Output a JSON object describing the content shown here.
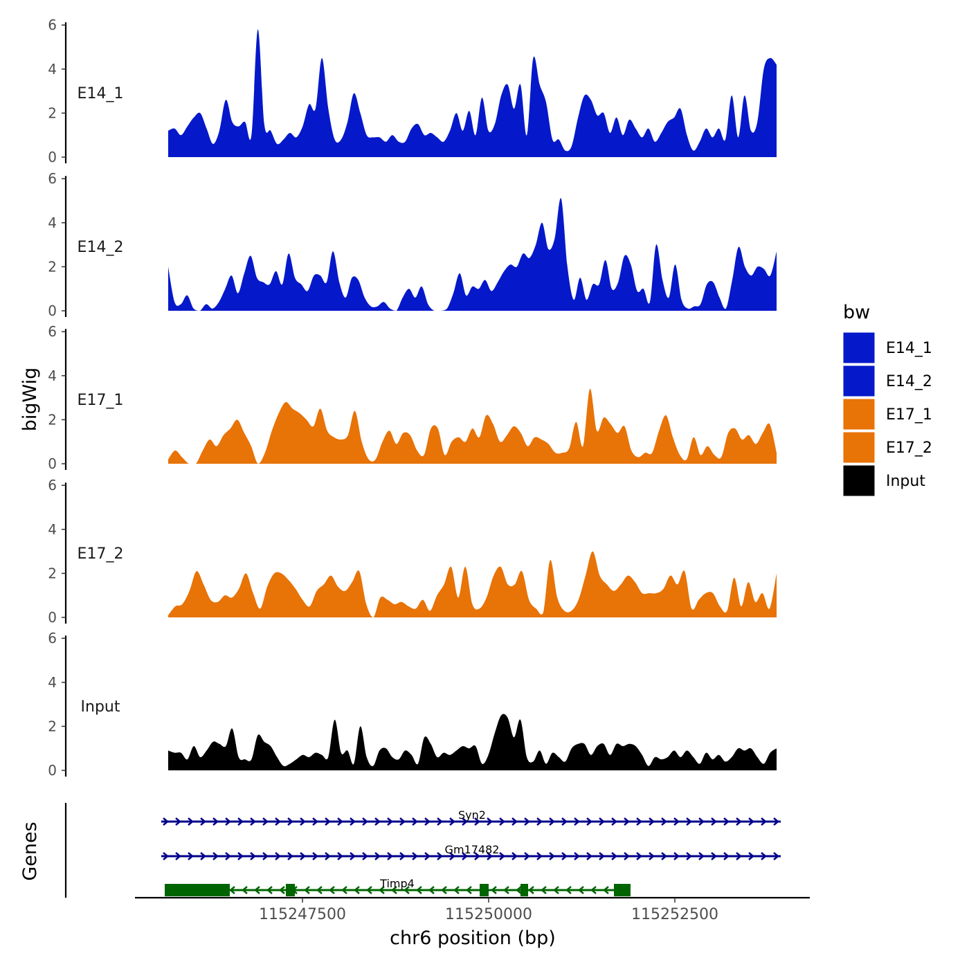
{
  "chart_data": {
    "type": "area",
    "title": "",
    "xlabel": "chr6 position (bp)",
    "ylabel": "bigWig",
    "genes_label": "Genes",
    "xlim": [
      115244700,
      115253900
    ],
    "ylim": [
      0,
      6
    ],
    "y_ticks": [
      "0",
      "2",
      "4",
      "6"
    ],
    "x_ticks": [
      {
        "value": 115247500,
        "label": "115247500"
      },
      {
        "value": 115250000,
        "label": "115250000"
      },
      {
        "value": 115252500,
        "label": "115252500"
      }
    ],
    "legend": {
      "title": "bw",
      "entries": [
        {
          "label": "E14_1",
          "color": "#0519CA"
        },
        {
          "label": "E14_2",
          "color": "#0519CA"
        },
        {
          "label": "E17_1",
          "color": "#E87307"
        },
        {
          "label": "E17_2",
          "color": "#E87307"
        },
        {
          "label": "Input",
          "color": "#000000"
        }
      ]
    },
    "x_start": 115245100,
    "x_step": 100,
    "series": [
      {
        "name": "E14_1",
        "color": "#0519CA",
        "values": [
          1.2,
          1.3,
          1.0,
          1.4,
          1.8,
          2.0,
          1.3,
          0.6,
          1.2,
          2.6,
          1.6,
          1.4,
          1.6,
          1.0,
          5.8,
          1.5,
          1.2,
          0.6,
          0.8,
          1.1,
          0.9,
          1.4,
          2.4,
          2.2,
          4.5,
          2.2,
          0.8,
          0.8,
          1.6,
          2.9,
          2.0,
          1.0,
          0.9,
          0.9,
          0.7,
          1.0,
          0.7,
          0.7,
          1.3,
          1.5,
          1.0,
          1.1,
          0.9,
          0.7,
          1.2,
          2.0,
          1.2,
          2.1,
          1.0,
          2.7,
          1.2,
          1.5,
          2.8,
          3.3,
          2.2,
          3.3,
          1.0,
          4.5,
          3.3,
          2.5,
          0.8,
          0.8,
          0.3,
          0.5,
          1.8,
          2.8,
          2.6,
          1.9,
          2.0,
          1.1,
          1.8,
          1.0,
          1.7,
          1.3,
          0.9,
          1.3,
          0.7,
          1.1,
          1.6,
          1.8,
          2.2,
          1.0,
          0.3,
          0.7,
          1.3,
          0.9,
          1.3,
          0.8,
          2.8,
          0.9,
          2.8,
          1.2,
          1.6,
          4.0,
          4.5,
          4.2
        ]
      },
      {
        "name": "E14_2",
        "color": "#0519CA",
        "values": [
          2.0,
          0.4,
          0.3,
          0.7,
          0.1,
          0.0,
          0.3,
          0.1,
          0.4,
          1.0,
          1.6,
          0.8,
          1.7,
          2.5,
          1.5,
          1.3,
          1.2,
          1.8,
          1.2,
          2.6,
          1.5,
          1.2,
          0.9,
          1.6,
          1.6,
          1.3,
          2.7,
          1.3,
          0.6,
          1.5,
          1.4,
          0.6,
          0.2,
          0.2,
          0.4,
          0.1,
          0.0,
          0.6,
          1.0,
          0.6,
          1.1,
          0.3,
          0.0,
          0.0,
          0.1,
          0.8,
          1.7,
          0.7,
          1.1,
          1.0,
          1.4,
          0.9,
          1.3,
          1.8,
          2.1,
          2.0,
          2.6,
          2.4,
          3.0,
          4.0,
          2.8,
          3.3,
          5.1,
          2.0,
          0.5,
          1.5,
          0.5,
          1.2,
          1.2,
          2.3,
          1.0,
          1.3,
          2.5,
          2.1,
          0.9,
          1.0,
          0.4,
          3.0,
          1.4,
          0.6,
          2.1,
          0.5,
          0.1,
          0.2,
          0.3,
          1.2,
          1.3,
          0.6,
          0.1,
          1.4,
          2.9,
          2.0,
          1.6,
          2.0,
          1.9,
          1.6,
          2.7
        ]
      },
      {
        "name": "E17_1",
        "color": "#E87307",
        "values": [
          0.2,
          0.6,
          0.3,
          0.0,
          0.0,
          0.6,
          1.1,
          0.8,
          1.3,
          1.6,
          2.0,
          1.4,
          0.8,
          0.0,
          0.5,
          1.5,
          2.3,
          2.8,
          2.5,
          2.3,
          2.0,
          1.7,
          2.5,
          1.5,
          1.2,
          1.1,
          1.3,
          2.4,
          1.0,
          0.2,
          0.2,
          1.0,
          1.5,
          0.9,
          1.4,
          1.3,
          0.6,
          0.4,
          1.6,
          1.6,
          0.4,
          1.0,
          1.2,
          1.0,
          1.6,
          1.2,
          2.2,
          1.8,
          1.0,
          1.3,
          1.7,
          1.4,
          0.8,
          1.2,
          1.1,
          0.9,
          0.5,
          0.5,
          0.7,
          1.9,
          0.8,
          3.4,
          1.5,
          2.1,
          1.8,
          1.4,
          1.7,
          0.6,
          0.3,
          0.5,
          0.5,
          1.5,
          2.2,
          1.2,
          0.4,
          0.2,
          1.2,
          0.4,
          0.8,
          0.4,
          0.3,
          1.4,
          1.6,
          1.1,
          1.3,
          0.9,
          1.4,
          1.8,
          0.5
        ]
      },
      {
        "name": "E17_2",
        "color": "#E87307",
        "values": [
          0.1,
          0.5,
          0.6,
          1.2,
          2.1,
          1.5,
          0.8,
          0.7,
          1.0,
          0.9,
          1.3,
          2.0,
          1.1,
          0.4,
          1.4,
          2.0,
          2.0,
          1.7,
          1.3,
          0.8,
          0.5,
          1.2,
          1.5,
          1.9,
          1.4,
          1.2,
          1.6,
          2.1,
          0.6,
          0.0,
          0.9,
          0.8,
          0.6,
          0.7,
          0.5,
          0.4,
          0.8,
          0.3,
          1.0,
          1.5,
          2.3,
          0.9,
          2.3,
          0.6,
          0.4,
          0.9,
          1.9,
          2.3,
          1.5,
          1.5,
          2.1,
          0.8,
          0.4,
          0.2,
          2.6,
          0.9,
          0.3,
          0.3,
          0.8,
          1.9,
          3.0,
          1.9,
          1.5,
          1.2,
          1.5,
          1.9,
          1.6,
          1.1,
          1.1,
          1.1,
          1.3,
          1.9,
          1.5,
          2.1,
          0.4,
          0.8,
          1.1,
          1.1,
          0.5,
          0.3,
          1.8,
          0.5,
          1.6,
          0.7,
          1.1,
          0.4,
          2.0
        ]
      },
      {
        "name": "Input",
        "color": "#000000",
        "values": [
          0.9,
          0.8,
          0.8,
          0.5,
          1.1,
          0.6,
          0.9,
          1.3,
          1.2,
          1.1,
          1.9,
          0.6,
          0.5,
          0.5,
          1.6,
          1.3,
          1.1,
          0.6,
          0.2,
          0.3,
          0.5,
          0.7,
          0.6,
          0.8,
          0.7,
          0.6,
          2.3,
          0.8,
          0.9,
          0.3,
          2.0,
          0.6,
          0.2,
          0.9,
          1.0,
          0.6,
          0.5,
          0.9,
          0.7,
          0.3,
          1.5,
          1.2,
          0.6,
          0.8,
          0.7,
          0.9,
          1.1,
          1.0,
          1.1,
          0.3,
          0.7,
          1.7,
          2.5,
          2.4,
          1.5,
          2.3,
          0.6,
          0.4,
          0.9,
          0.3,
          0.8,
          0.6,
          0.4,
          1.0,
          1.2,
          1.2,
          0.7,
          1.1,
          1.2,
          0.7,
          1.2,
          1.1,
          1.2,
          1.1,
          0.7,
          0.2,
          0.6,
          0.5,
          0.6,
          0.9,
          0.6,
          0.9,
          0.6,
          0.3,
          0.8,
          0.5,
          0.7,
          0.4,
          0.6,
          1.0,
          0.9,
          1.0,
          0.6,
          0.3,
          0.8,
          1.0
        ]
      }
    ],
    "genes": [
      {
        "name": "Syn2",
        "start": 115245000,
        "end": 115253400,
        "strand": "+",
        "color": "#00008B",
        "exons": []
      },
      {
        "name": "Gm17482",
        "start": 115245000,
        "end": 115253400,
        "strand": "+",
        "color": "#00008B",
        "exons": []
      },
      {
        "name": "Timp4",
        "start": 115245050,
        "end": 115251150,
        "strand": "-",
        "color": "#006400",
        "exons": [
          [
            115245050,
            115245900
          ],
          [
            115246720,
            115246840
          ],
          [
            115249340,
            115249460
          ],
          [
            115249880,
            115249980
          ],
          [
            115250950,
            115251150
          ]
        ]
      }
    ]
  }
}
